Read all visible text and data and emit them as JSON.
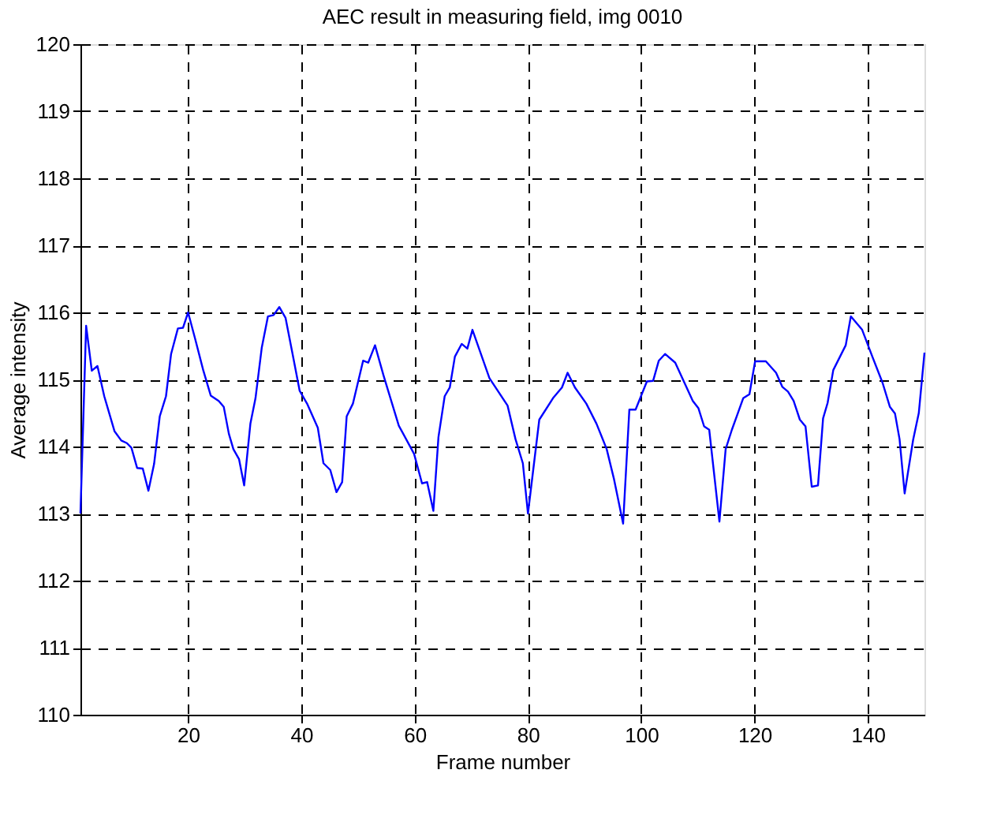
{
  "chart_data": {
    "type": "line",
    "title": "AEC result in measuring field, img 0010",
    "xlabel": "Frame number",
    "ylabel": "Average intensity",
    "x": [
      1,
      2,
      3,
      4,
      5.2,
      7,
      8.2,
      9.2,
      10,
      11,
      12,
      13,
      14,
      15,
      16.1,
      17,
      18.2,
      19.1,
      20,
      21.2,
      22.7,
      24,
      25.4,
      26.3,
      27.2,
      28,
      29,
      29.9,
      31,
      31.9,
      33,
      34.1,
      35.1,
      36.1,
      37.2,
      38.4,
      39.7,
      41,
      42.9,
      43.9,
      45.1,
      46.2,
      47.2,
      48,
      49.1,
      50.9,
      51.8,
      53,
      54.5,
      57.2,
      59.9,
      61.3,
      62.2,
      63.3,
      64.2,
      65.3,
      66.2,
      67.1,
      68.3,
      69.3,
      70.2,
      73.2,
      76.4,
      77.8,
      79.1,
      80,
      82,
      84.5,
      86,
      87,
      88.3,
      90.3,
      92.1,
      93.9,
      95.2,
      96.8,
      97.9,
      99,
      101,
      102.1,
      103.1,
      104.2,
      106,
      109.1,
      110.1,
      111.1,
      112,
      113.8,
      114.9,
      116,
      116.9,
      118,
      119.1,
      120.1,
      122,
      123.8,
      124.9,
      125.9,
      126.9,
      128,
      129,
      130.1,
      131.2,
      132.1,
      132.9,
      133.9,
      136.1,
      137,
      139,
      140.8,
      142.6,
      143.9,
      144.8,
      145.6,
      146.5,
      148,
      149,
      150
    ],
    "series": [
      {
        "color": "#0000ff",
        "values": [
          113.0,
          115.8,
          115.13,
          115.2,
          114.75,
          114.23,
          114.09,
          114.05,
          113.98,
          113.68,
          113.67,
          113.34,
          113.74,
          114.45,
          114.75,
          115.38,
          115.76,
          115.77,
          116.0,
          115.62,
          115.13,
          114.76,
          114.68,
          114.59,
          114.19,
          113.96,
          113.81,
          113.42,
          114.34,
          114.72,
          115.47,
          115.94,
          115.96,
          116.08,
          115.92,
          115.4,
          114.83,
          114.64,
          114.28,
          113.75,
          113.65,
          113.32,
          113.47,
          114.45,
          114.64,
          115.28,
          115.25,
          115.51,
          115.06,
          114.31,
          113.89,
          113.45,
          113.47,
          113.04,
          114.14,
          114.75,
          114.88,
          115.34,
          115.53,
          115.46,
          115.74,
          115.02,
          114.61,
          114.11,
          113.75,
          113.0,
          114.4,
          114.73,
          114.88,
          115.1,
          114.88,
          114.64,
          114.34,
          113.96,
          113.51,
          112.85,
          114.55,
          114.55,
          114.97,
          114.98,
          115.28,
          115.38,
          115.25,
          114.68,
          114.57,
          114.3,
          114.25,
          112.88,
          113.96,
          114.25,
          114.46,
          114.72,
          114.78,
          115.27,
          115.27,
          115.1,
          114.89,
          114.82,
          114.68,
          114.4,
          114.3,
          113.4,
          113.42,
          114.42,
          114.65,
          115.14,
          115.51,
          115.94,
          115.74,
          115.34,
          114.95,
          114.59,
          114.49,
          114.11,
          113.3,
          114.1,
          114.5,
          115.4
        ]
      }
    ],
    "xlim": [
      1,
      150
    ],
    "xticks": [
      20,
      40,
      60,
      80,
      100,
      120,
      140
    ],
    "ylim": [
      110,
      120
    ],
    "yticks": [
      110,
      111,
      112,
      113,
      114,
      115,
      116,
      117,
      118,
      119,
      120
    ],
    "grid": true,
    "marker": "none",
    "line_style": "solid"
  }
}
